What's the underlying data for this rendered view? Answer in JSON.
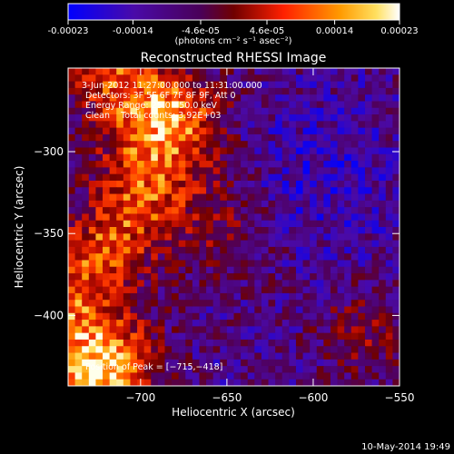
{
  "colorbar": {
    "ticks": [
      "-0.00023",
      "-0.00014",
      "-4.6e-05",
      "4.6e-05",
      "0.00014",
      "0.00023"
    ],
    "tick_values": [
      -0.00023,
      -0.00014,
      -4.6e-05,
      4.6e-05,
      0.00014,
      0.00023
    ],
    "range": [
      -0.00023,
      0.00023
    ],
    "unit_label": "(photons cm⁻² s⁻¹ asec⁻²)"
  },
  "chart_data": {
    "type": "heatmap",
    "title": "Reconstructed RHESSI Image",
    "xlabel": "Heliocentric X (arcsec)",
    "ylabel": "Heliocentric Y (arcsec)",
    "xlim": [
      -742,
      -550
    ],
    "ylim": [
      -443,
      -249
    ],
    "x_ticks": [
      -700,
      -650,
      -600,
      -550
    ],
    "y_ticks": [
      -300,
      -350,
      -400
    ],
    "x_tick_labels": [
      "−700",
      "−650",
      "−600",
      "−550"
    ],
    "y_tick_labels": [
      "−300",
      "−350",
      "−400"
    ],
    "annotations": [
      "3-Jun-2012 11:27:00.000 to 11:31:00.000",
      "Detectors: 3F 5F 6F 7F 8F 9F, Att 0",
      "Energy Range: 25.0 - 50.0 keV",
      "Clean    Total counts: 3.92E+03",
      "Position of Peak = [−715,−418]"
    ],
    "peak": {
      "x": -715,
      "y": -418
    },
    "colormap": [
      "#0000ff",
      "#5a0fa0",
      "#8b0000",
      "#ff2000",
      "#ff9000",
      "#ffe060",
      "#ffffff"
    ]
  },
  "footer": {
    "timestamp": "10-May-2014 19:49"
  }
}
